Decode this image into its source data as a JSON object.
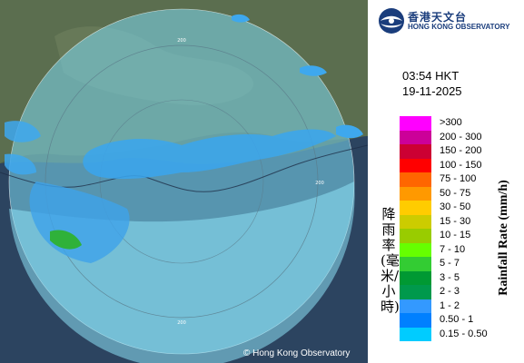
{
  "header": {
    "agency_cn": "香港天文台",
    "agency_en": "HONG KONG OBSERVATORY"
  },
  "timestamp": {
    "time": "03:54 HKT",
    "date": "19-11-2025"
  },
  "map": {
    "copyright": "© Hong Kong Observatory",
    "range_rings": [
      "200",
      "200",
      "200"
    ],
    "radar_cover_color": "#7cd8f0",
    "land_color": "#5a6b50",
    "sea_color": "#2a3f5a"
  },
  "legend": {
    "title_cn": "降雨率(毫米/小時)",
    "title_en": "Rainfall Rate (mm/h)",
    "items": [
      {
        "range": ">300",
        "color": "#ff00ff"
      },
      {
        "range": "200 - 300",
        "color": "#cc0099"
      },
      {
        "range": "150 - 200",
        "color": "#cc0033"
      },
      {
        "range": "100 - 150",
        "color": "#ff0000"
      },
      {
        "range": "75 - 100",
        "color": "#ff6600"
      },
      {
        "range": "50 - 75",
        "color": "#ff9900"
      },
      {
        "range": "30 - 50",
        "color": "#ffcc00"
      },
      {
        "range": "15 - 30",
        "color": "#cccc00"
      },
      {
        "range": "10 - 15",
        "color": "#99cc00"
      },
      {
        "range": "7 - 10",
        "color": "#66ff00"
      },
      {
        "range": "5 - 7",
        "color": "#33cc33"
      },
      {
        "range": "3 - 5",
        "color": "#009933"
      },
      {
        "range": "2 - 3",
        "color": "#00994c"
      },
      {
        "range": "1 - 2",
        "color": "#3399ff"
      },
      {
        "range": "0.50 - 1",
        "color": "#0080ff"
      },
      {
        "range": "0.15 - 0.50",
        "color": "#00ccff"
      }
    ]
  }
}
